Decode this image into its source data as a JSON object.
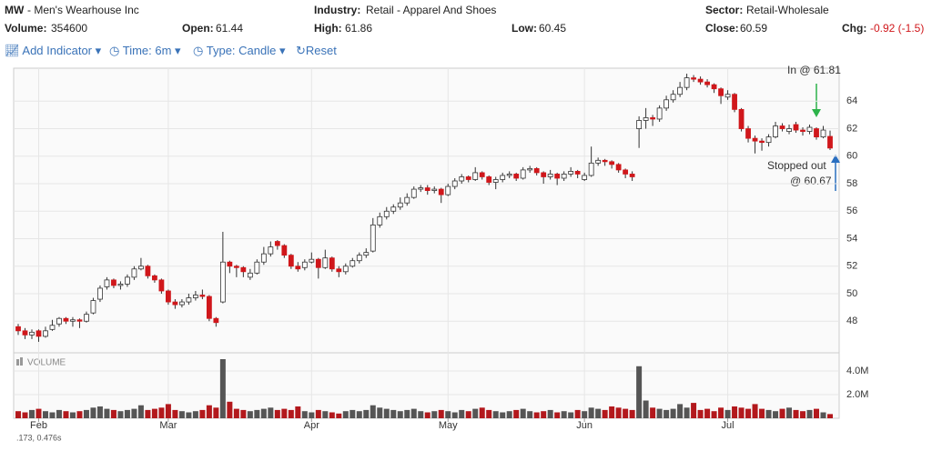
{
  "header": {
    "symbol": "MW",
    "name": "- Men's Wearhouse Inc",
    "volume_label": "Volume:",
    "volume": "354600",
    "open_label": "Open:",
    "open": "61.44",
    "industry_label": "Industry:",
    "industry": "Retail - Apparel And Shoes",
    "high_label": "High:",
    "high": "61.86",
    "low_label": "Low:",
    "low": "60.45",
    "sector_label": "Sector:",
    "sector": "Retail-Wholesale",
    "close_label": "Close:",
    "close": "60.59",
    "chg_label": "Chg:",
    "chg": "-0.92 (-1.5)"
  },
  "toolbar": {
    "indicator": "Add Indicator",
    "time": "Time: 6m",
    "type": "Type: Candle",
    "reset": "Reset"
  },
  "annotations": {
    "entry": "In @ 61.81",
    "stop_line1": "Stopped out",
    "stop_line2": "@ 60.67"
  },
  "footer": ".173, 0.476s",
  "chart_data": {
    "type": "candlestick",
    "up_color": "#ffffff",
    "down_color": "#d0171b",
    "grid": true,
    "categories": [
      null,
      null,
      null,
      "Feb",
      null,
      null,
      null,
      null,
      null,
      null,
      null,
      null,
      null,
      null,
      null,
      null,
      null,
      null,
      null,
      null,
      null,
      null,
      "Mar",
      null,
      null,
      null,
      null,
      null,
      null,
      null,
      null,
      null,
      null,
      null,
      null,
      null,
      null,
      null,
      null,
      null,
      null,
      null,
      null,
      "Apr",
      null,
      null,
      null,
      null,
      null,
      null,
      null,
      null,
      null,
      null,
      null,
      null,
      null,
      null,
      null,
      null,
      null,
      null,
      null,
      "May",
      null,
      null,
      null,
      null,
      null,
      null,
      null,
      null,
      null,
      null,
      null,
      null,
      null,
      null,
      null,
      null,
      null,
      null,
      null,
      "Jun",
      null,
      null,
      null,
      null,
      null,
      null,
      null,
      null,
      null,
      null,
      null,
      null,
      null,
      null,
      null,
      null,
      null,
      null,
      null,
      null,
      "Jul",
      null,
      null,
      null,
      null,
      null,
      null,
      null,
      null,
      null,
      null,
      null,
      null,
      null,
      null,
      null
    ],
    "open": [
      47.6,
      47.3,
      47.0,
      47.3,
      46.9,
      47.4,
      47.8,
      48.2,
      48.0,
      48.1,
      48.0,
      48.6,
      49.6,
      50.5,
      51.0,
      50.6,
      50.7,
      51.2,
      51.8,
      52.0,
      51.3,
      51.0,
      50.2,
      49.4,
      49.2,
      49.4,
      49.7,
      49.9,
      49.8,
      48.2,
      49.4,
      52.3,
      52.0,
      51.9,
      51.2,
      51.5,
      52.3,
      52.9,
      53.8,
      53.5,
      52.8,
      52.0,
      51.9,
      52.3,
      52.5,
      51.9,
      52.6,
      51.8,
      51.6,
      52.0,
      52.4,
      52.8,
      53.1,
      55.0,
      55.6,
      56.0,
      56.3,
      56.6,
      57.0,
      57.6,
      57.7,
      57.5,
      57.6,
      57.2,
      57.8,
      58.2,
      58.5,
      58.3,
      58.8,
      58.5,
      58.1,
      58.3,
      58.6,
      58.7,
      58.4,
      59.0,
      59.1,
      58.8,
      58.5,
      58.7,
      58.4,
      58.7,
      58.9,
      58.3,
      58.6,
      59.5,
      59.7,
      59.6,
      59.4,
      59.0,
      58.7,
      62.0,
      62.6,
      62.8,
      62.7,
      63.5,
      64.1,
      64.5,
      65.0,
      65.7,
      65.6,
      65.4,
      65.2,
      64.9,
      64.3,
      64.5,
      63.4,
      62.0,
      61.3,
      61.1,
      61.0,
      61.4,
      62.2,
      61.8,
      62.3,
      61.9,
      61.8,
      62.0,
      61.4,
      61.44
    ],
    "high": [
      47.8,
      47.5,
      47.4,
      47.4,
      47.6,
      48.1,
      48.3,
      48.3,
      48.3,
      48.2,
      48.7,
      49.7,
      50.6,
      51.2,
      51.1,
      50.9,
      51.4,
      52.0,
      52.6,
      52.1,
      51.4,
      51.1,
      50.3,
      49.6,
      49.6,
      50.0,
      50.2,
      50.3,
      49.9,
      48.3,
      54.5,
      52.4,
      52.1,
      52.0,
      51.8,
      52.5,
      53.4,
      53.8,
      53.9,
      53.6,
      52.9,
      52.3,
      52.5,
      53.0,
      52.6,
      53.2,
      52.7,
      52.0,
      52.2,
      52.6,
      53.0,
      53.3,
      55.5,
      55.9,
      56.3,
      56.5,
      57.0,
      57.3,
      57.8,
      57.9,
      57.9,
      57.8,
      57.7,
      58.0,
      58.4,
      58.7,
      58.6,
      59.2,
      58.9,
      58.6,
      58.5,
      58.8,
      58.9,
      58.8,
      59.2,
      59.3,
      59.2,
      58.9,
      59.0,
      58.8,
      58.9,
      59.2,
      59.0,
      58.8,
      60.7,
      59.9,
      59.8,
      59.7,
      59.5,
      59.1,
      58.9,
      62.9,
      63.5,
      63.0,
      63.7,
      64.4,
      64.8,
      65.4,
      66.0,
      65.9,
      65.8,
      65.6,
      65.3,
      65.0,
      64.8,
      64.6,
      63.5,
      62.2,
      61.5,
      61.3,
      61.6,
      62.5,
      62.4,
      62.3,
      62.5,
      62.1,
      62.3,
      62.1,
      62.2,
      61.86
    ],
    "low": [
      47.0,
      46.7,
      46.7,
      46.5,
      46.8,
      47.3,
      47.6,
      47.8,
      47.6,
      47.5,
      47.9,
      48.5,
      49.4,
      50.3,
      50.4,
      50.3,
      50.5,
      51.0,
      51.7,
      51.1,
      50.8,
      50.0,
      49.2,
      48.9,
      49.0,
      49.2,
      49.5,
      49.6,
      48.0,
      47.6,
      49.3,
      51.5,
      51.2,
      51.2,
      51.0,
      51.4,
      52.1,
      52.7,
      53.2,
      52.6,
      51.8,
      51.6,
      51.7,
      52.2,
      51.1,
      51.8,
      51.6,
      51.2,
      51.4,
      51.9,
      52.2,
      52.6,
      53.0,
      54.8,
      55.4,
      55.8,
      56.1,
      56.4,
      56.9,
      57.4,
      57.2,
      57.3,
      56.6,
      57.1,
      57.6,
      58.0,
      58.1,
      58.2,
      58.3,
      57.9,
      57.6,
      58.1,
      58.4,
      58.2,
      58.3,
      58.8,
      58.6,
      58.0,
      58.3,
      57.9,
      58.2,
      58.5,
      58.4,
      58.2,
      58.5,
      59.3,
      59.3,
      59.1,
      58.8,
      58.4,
      58.2,
      60.6,
      62.0,
      62.2,
      62.5,
      63.3,
      63.9,
      64.3,
      64.8,
      65.4,
      65.2,
      65.0,
      64.6,
      63.8,
      64.1,
      63.2,
      61.8,
      61.0,
      60.2,
      60.4,
      60.7,
      61.3,
      61.8,
      61.6,
      61.7,
      61.5,
      61.6,
      61.2,
      61.3,
      60.45
    ],
    "close": [
      47.3,
      47.0,
      47.2,
      46.9,
      47.3,
      47.7,
      48.2,
      48.0,
      48.1,
      48.0,
      48.5,
      49.5,
      50.4,
      51.0,
      50.6,
      50.7,
      51.2,
      51.8,
      52.0,
      51.3,
      51.0,
      50.2,
      49.4,
      49.2,
      49.4,
      49.7,
      49.9,
      49.8,
      48.2,
      47.9,
      52.3,
      52.0,
      51.9,
      51.6,
      51.5,
      52.3,
      52.9,
      53.4,
      53.5,
      52.8,
      52.0,
      51.8,
      52.3,
      52.5,
      51.9,
      52.6,
      51.8,
      51.6,
      52.0,
      52.4,
      52.8,
      53.0,
      55.0,
      55.6,
      56.0,
      56.3,
      56.6,
      57.0,
      57.6,
      57.7,
      57.5,
      57.6,
      57.2,
      57.8,
      58.2,
      58.5,
      58.3,
      58.8,
      58.5,
      58.1,
      58.3,
      58.6,
      58.7,
      58.4,
      59.0,
      59.1,
      58.8,
      58.5,
      58.7,
      58.4,
      58.7,
      58.9,
      58.7,
      58.6,
      59.5,
      59.7,
      59.6,
      59.4,
      59.0,
      58.7,
      58.5,
      62.6,
      62.8,
      62.7,
      63.5,
      64.1,
      64.5,
      65.0,
      65.7,
      65.6,
      65.4,
      65.2,
      64.9,
      64.4,
      64.5,
      63.4,
      62.0,
      61.3,
      61.1,
      61.0,
      61.4,
      62.2,
      62.0,
      62.0,
      61.9,
      61.8,
      62.1,
      61.4,
      61.9,
      60.59
    ],
    "ylim": [
      45.9,
      66.4
    ],
    "yticks": [
      48,
      50,
      52,
      54,
      56,
      58,
      60,
      62,
      64
    ],
    "volume": {
      "label": "VOLUME",
      "up_color": "#555555",
      "down_color": "#b3181c",
      "values": [
        600000,
        500000,
        700000,
        800000,
        600000,
        500000,
        700000,
        600000,
        500000,
        600000,
        700000,
        900000,
        1000000,
        800000,
        700000,
        600000,
        700000,
        800000,
        1100000,
        700000,
        800000,
        900000,
        1200000,
        700000,
        600000,
        500000,
        600000,
        700000,
        1100000,
        900000,
        5000000,
        1400000,
        800000,
        700000,
        600000,
        700000,
        800000,
        900000,
        700000,
        800000,
        700000,
        1000000,
        600000,
        500000,
        700000,
        600000,
        500000,
        400000,
        600000,
        700000,
        600000,
        700000,
        1100000,
        900000,
        800000,
        700000,
        600000,
        700000,
        800000,
        600000,
        500000,
        600000,
        700000,
        600000,
        500000,
        700000,
        600000,
        800000,
        900000,
        700000,
        600000,
        500000,
        600000,
        700000,
        800000,
        600000,
        500000,
        600000,
        700000,
        500000,
        600000,
        500000,
        700000,
        600000,
        900000,
        800000,
        700000,
        1000000,
        900000,
        800000,
        700000,
        4400000,
        1500000,
        900000,
        800000,
        700000,
        800000,
        1200000,
        900000,
        1300000,
        700000,
        800000,
        600000,
        900000,
        700000,
        1000000,
        900000,
        800000,
        1200000,
        800000,
        700000,
        600000,
        800000,
        900000,
        700000,
        600000,
        700000,
        800000,
        500000,
        354600
      ],
      "ylim": [
        0,
        5230000
      ],
      "yticks": [
        {
          "value": 2000000,
          "label": "2.0M"
        },
        {
          "value": 4000000,
          "label": "4.0M"
        }
      ]
    }
  }
}
